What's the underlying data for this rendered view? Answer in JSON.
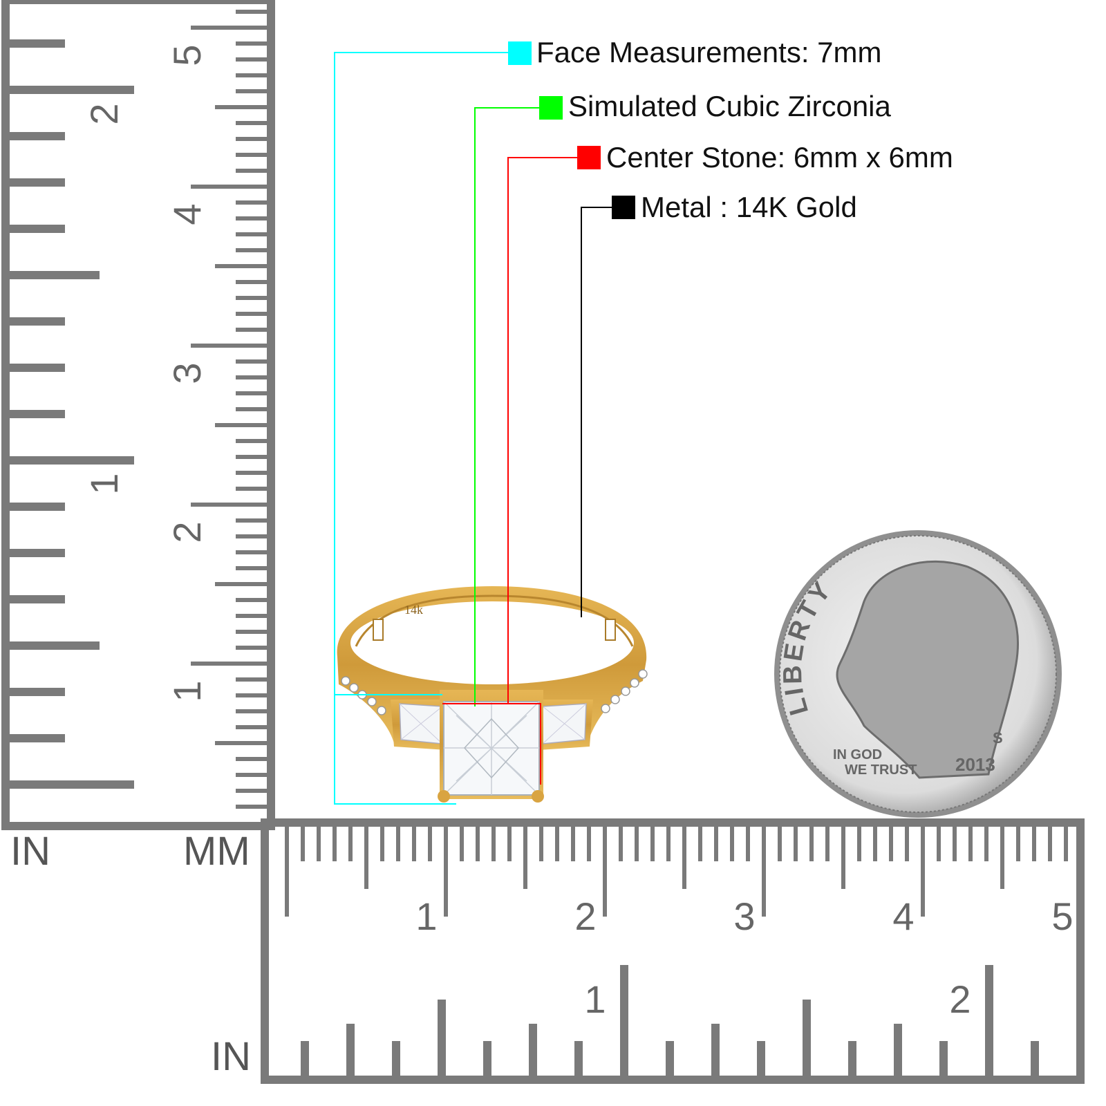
{
  "legend": [
    {
      "label": "Face Measurements: 7mm",
      "color": "#00ffff"
    },
    {
      "label": "Simulated Cubic Zirconia",
      "color": "#00ff00"
    },
    {
      "label": "Center Stone: 6mm x 6mm",
      "color": "#ff0000"
    },
    {
      "label": "Metal : 14K Gold",
      "color": "#000000"
    }
  ],
  "ruler": {
    "unit_in_left": "IN",
    "unit_mm": "MM",
    "unit_in_bottom": "IN",
    "cm_labels": [
      "1",
      "2",
      "3",
      "4",
      "5"
    ],
    "inch_labels": [
      "1",
      "2"
    ],
    "color": "#7a7a7a"
  },
  "ring": {
    "stamp": "14k",
    "metal_color": "#d9a441"
  },
  "coin": {
    "legend_top": "LIBERTY",
    "motto_1": "IN GOD",
    "motto_2": "WE TRUST",
    "year": "2013",
    "mint_mark": "S"
  }
}
